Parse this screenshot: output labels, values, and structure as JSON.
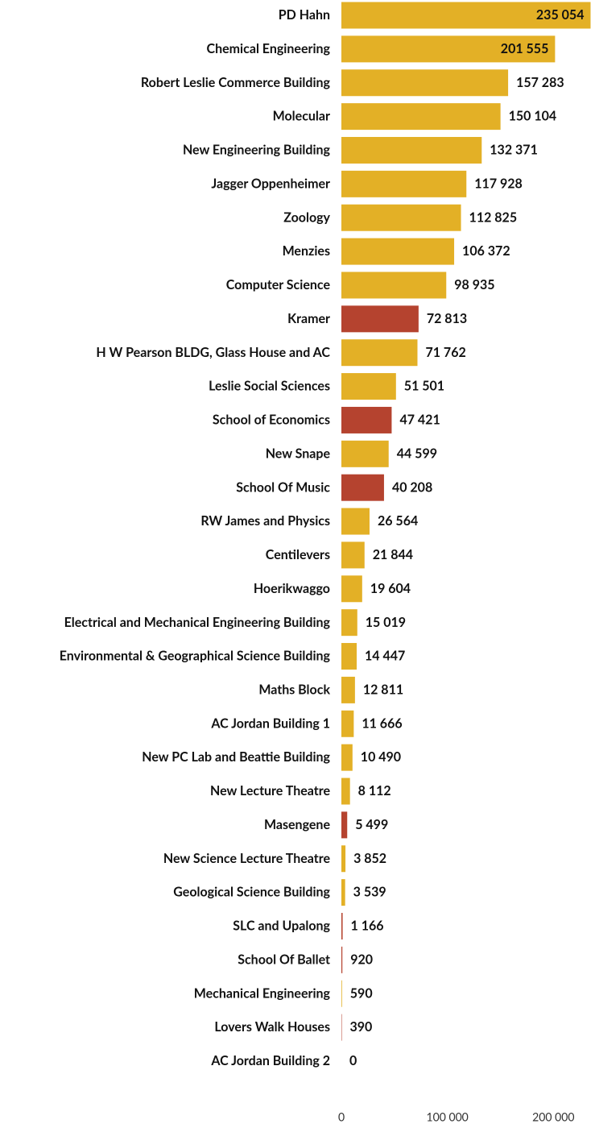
{
  "chart_data": {
    "type": "hbar",
    "categories": [
      "PD Hahn",
      "Chemical Engineering",
      "Robert Leslie Commerce Building",
      "Molecular",
      "New Engineering Building",
      "Jagger Oppenheimer",
      "Zoology",
      "Menzies",
      "Computer Science",
      "Kramer",
      "H W Pearson BLDG, Glass House and AC",
      "Leslie Social Sciences",
      "School of Economics",
      "New Snape",
      "School Of Music",
      "RW James and Physics",
      "Centilevers",
      "Hoerikwaggo",
      "Electrical and Mechanical Engineering Building",
      "Environmental & Geographical Science Building",
      "Maths Block",
      "AC Jordan Building 1",
      "New PC Lab and Beattie Building",
      "New Lecture Theatre",
      "Masengene",
      "New Science Lecture Theatre",
      "Geological Science Building",
      "SLC and Upalong",
      "School Of Ballet",
      "Mechanical Engineering",
      "Lovers Walk Houses",
      "AC Jordan Building 2"
    ],
    "values": [
      235054,
      201555,
      157283,
      150104,
      132371,
      117928,
      112825,
      106372,
      98935,
      72813,
      71762,
      51501,
      47421,
      44599,
      40208,
      26564,
      21844,
      19604,
      15019,
      14447,
      12811,
      11666,
      10490,
      8112,
      5499,
      3852,
      3539,
      1166,
      920,
      590,
      390,
      0
    ],
    "value_labels": [
      "235 054",
      "201 555",
      "157 283",
      "150 104",
      "132 371",
      "117 928",
      "112 825",
      "106 372",
      "98 935",
      "72 813",
      "71 762",
      "51 501",
      "47 421",
      "44 599",
      "40 208",
      "26 564",
      "21 844",
      "19 604",
      "15 019",
      "14 447",
      "12 811",
      "11 666",
      "10 490",
      "8 112",
      "5 499",
      "3 852",
      "3 539",
      "1 166",
      "920",
      "590",
      "390",
      "0"
    ],
    "colors": [
      "#e3b026",
      "#e3b026",
      "#e3b026",
      "#e3b026",
      "#e3b026",
      "#e3b026",
      "#e3b026",
      "#e3b026",
      "#e3b026",
      "#b5432f",
      "#e3b026",
      "#e3b026",
      "#b5432f",
      "#e3b026",
      "#b5432f",
      "#e3b026",
      "#e3b026",
      "#e3b026",
      "#e3b026",
      "#e3b026",
      "#e3b026",
      "#e3b026",
      "#e3b026",
      "#e3b026",
      "#b5432f",
      "#e3b026",
      "#e3b026",
      "#b5432f",
      "#b5432f",
      "#e3b026",
      "#b5432f",
      "#e3b026"
    ],
    "xlim": [
      0,
      240000
    ],
    "xticks": [
      0,
      {
        "value": 100000,
        "label": "100 000"
      },
      {
        "value": 200000,
        "label": "200 000"
      }
    ]
  }
}
